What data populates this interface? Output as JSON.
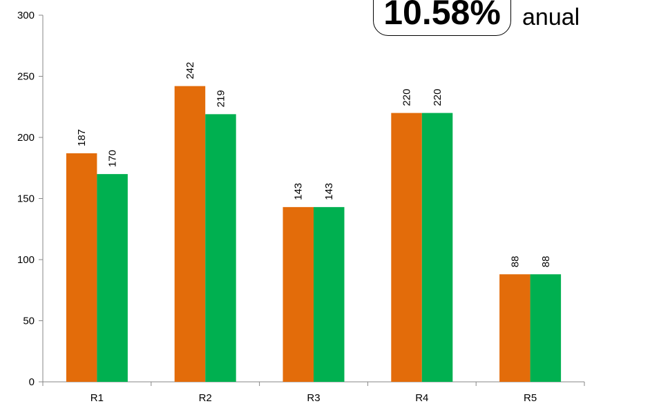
{
  "callout": {
    "value": "10.58%",
    "unit": "anual"
  },
  "chart_data": {
    "type": "bar",
    "categories": [
      "R1",
      "R2",
      "R3",
      "R4",
      "R5"
    ],
    "series": [
      {
        "values": [
          187,
          242,
          143,
          220,
          88
        ],
        "color": "#E36C0A"
      },
      {
        "values": [
          170,
          219,
          143,
          220,
          88
        ],
        "color": "#00B050"
      }
    ],
    "ylim": [
      0,
      300
    ],
    "yticks": [
      0,
      50,
      100,
      150,
      200,
      250,
      300
    ],
    "data_labels": true,
    "data_label_orientation": "vertical",
    "grid": false,
    "legend": "none"
  }
}
